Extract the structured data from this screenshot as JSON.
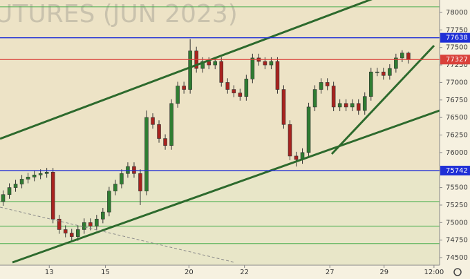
{
  "chart_data": {
    "type": "candlestick",
    "watermark": "UTURES (JUN 2023)",
    "x": [
      0,
      1,
      2,
      3,
      4,
      5,
      6,
      7,
      8,
      9,
      10,
      11,
      12,
      13,
      14,
      15,
      16,
      17,
      18,
      19,
      20,
      21,
      22,
      23,
      24,
      25,
      26,
      27,
      28,
      29,
      30,
      31,
      32,
      33,
      34,
      35,
      36,
      37,
      38,
      39,
      40,
      41,
      42,
      43,
      44,
      45,
      46,
      47,
      48,
      49,
      50,
      51,
      52,
      53,
      54,
      55,
      56,
      57,
      58,
      59,
      60,
      61,
      62,
      63,
      64,
      65
    ],
    "open": [
      75300,
      75400,
      75500,
      75550,
      75620,
      75650,
      75680,
      75700,
      75720,
      75050,
      74900,
      74850,
      74800,
      74900,
      75000,
      74950,
      75050,
      75150,
      75450,
      75550,
      75700,
      75800,
      75700,
      75450,
      76500,
      76400,
      76200,
      76100,
      76700,
      76950,
      76900,
      77450,
      77200,
      77300,
      77250,
      77300,
      77000,
      76900,
      76850,
      76800,
      77050,
      77350,
      77300,
      77250,
      77300,
      76900,
      76400,
      75950,
      75900,
      76000,
      76650,
      76900,
      77000,
      76950,
      76650,
      76700,
      76650,
      76700,
      76600,
      76800,
      77150,
      77150,
      77100,
      77200,
      77350,
      77420
    ],
    "high": [
      75460,
      75560,
      75610,
      75680,
      75710,
      75740,
      75760,
      75780,
      75780,
      75110,
      74960,
      74910,
      74960,
      75060,
      75060,
      75110,
      75210,
      75510,
      75610,
      75760,
      75860,
      75860,
      75760,
      76600,
      76560,
      76460,
      76260,
      76760,
      77010,
      77010,
      77620,
      77510,
      77360,
      77360,
      77360,
      77360,
      77060,
      76960,
      76910,
      77110,
      77410,
      77410,
      77360,
      77360,
      77360,
      76960,
      76460,
      76010,
      76060,
      76710,
      76960,
      77060,
      77060,
      77010,
      76760,
      76760,
      76760,
      76760,
      76860,
      77210,
      77210,
      77210,
      77260,
      77410,
      77460,
      77440
    ],
    "low": [
      75240,
      75340,
      75440,
      75490,
      75560,
      75590,
      75620,
      75640,
      74990,
      74840,
      74790,
      74740,
      74740,
      74840,
      74890,
      74890,
      74990,
      75090,
      75390,
      75490,
      75640,
      75640,
      75250,
      75390,
      76340,
      76140,
      76040,
      76040,
      76640,
      76840,
      76840,
      77140,
      77140,
      77190,
      77190,
      76940,
      76840,
      76790,
      76740,
      76740,
      76990,
      77240,
      77190,
      77190,
      76840,
      76340,
      75890,
      75800,
      75840,
      75940,
      76590,
      76840,
      76890,
      76590,
      76590,
      76590,
      76590,
      76540,
      76540,
      76740,
      77090,
      77040,
      77040,
      77140,
      77290,
      77270
    ],
    "close": [
      75400,
      75500,
      75550,
      75620,
      75650,
      75680,
      75700,
      75720,
      75050,
      74900,
      74850,
      74800,
      74900,
      75000,
      74950,
      75050,
      75150,
      75450,
      75550,
      75700,
      75800,
      75700,
      75450,
      76500,
      76400,
      76200,
      76100,
      76700,
      76950,
      76900,
      77450,
      77200,
      77300,
      77250,
      77300,
      77000,
      76900,
      76850,
      76800,
      77050,
      77350,
      77300,
      77250,
      77300,
      76900,
      76400,
      75950,
      75900,
      76000,
      76650,
      76900,
      77000,
      76950,
      76650,
      76700,
      76650,
      76700,
      76600,
      76800,
      77150,
      77150,
      77100,
      77200,
      77350,
      77420,
      77327
    ],
    "up_color": "#2f7d32",
    "down_color": "#a8231f",
    "xlim": [
      -0.5,
      70
    ],
    "xticks": [
      {
        "value": 7.4,
        "label": "13"
      },
      {
        "value": 16.4,
        "label": "15"
      },
      {
        "value": 29.8,
        "label": "20"
      },
      {
        "value": 38.7,
        "label": "22"
      },
      {
        "value": 52.4,
        "label": "27"
      },
      {
        "value": 61.1,
        "label": "29"
      },
      {
        "value": 69.1,
        "label": "12:00"
      }
    ],
    "ylim": [
      74392,
      78177
    ],
    "yticks": [
      74500,
      74750,
      75000,
      75250,
      75500,
      75750,
      76000,
      76250,
      76500,
      76750,
      77000,
      77250,
      77500,
      77750,
      78000
    ],
    "levels": [
      {
        "value": 77638,
        "color": "#1f2fd6"
      },
      {
        "value": 77327,
        "color": "#d9413a"
      },
      {
        "value": 75742,
        "color": "#1f2fd6"
      }
    ],
    "guide_lines": [
      {
        "value": 78080,
        "color": "#4caf50"
      },
      {
        "value": 75300,
        "color": "#4caf50"
      },
      {
        "value": 74950,
        "color": "#4caf50"
      },
      {
        "value": 74700,
        "color": "#4caf50"
      }
    ]
  }
}
